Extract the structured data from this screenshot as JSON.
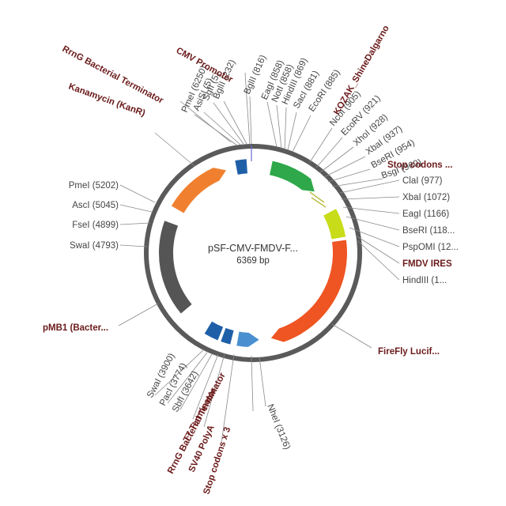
{
  "plasmid": {
    "name": "pSF-CMV-FMDV-F...",
    "length": "6369 bp",
    "backbone_color": "#555555"
  },
  "sites": [
    {
      "label": "PmeI (6250)"
    },
    {
      "label": "AsiSI (5)"
    },
    {
      "label": "SgfI (5)"
    },
    {
      "label": "BglII (232)"
    },
    {
      "label": "BglII (816)"
    },
    {
      "label": "EagI (858)"
    },
    {
      "label": "NotI (858)"
    },
    {
      "label": "HindIII (869)"
    },
    {
      "label": "SacI (881)"
    },
    {
      "label": "EcoRI (885)"
    },
    {
      "label": "NcoI (905)"
    },
    {
      "label": "EcoRV (921)"
    },
    {
      "label": "XhoI (928)"
    },
    {
      "label": "XbaI (937)"
    },
    {
      "label": "BseRI (954)"
    },
    {
      "label": "BsgI (960)"
    },
    {
      "label": "ClaI (977)"
    },
    {
      "label": "XbaI (1072)"
    },
    {
      "label": "EagI (1166)"
    },
    {
      "label": "BseRI (118..."
    },
    {
      "label": "PspOMI (12..."
    },
    {
      "label": "HindIII (1..."
    },
    {
      "label": "NheI (3126)"
    },
    {
      "label": "PacI (3774)"
    },
    {
      "label": "SbfI (3642)"
    },
    {
      "label": "SwaI (3900)"
    },
    {
      "label": "SwaI (4793)"
    },
    {
      "label": "FseI (4899)"
    },
    {
      "label": "AscI (5045)"
    },
    {
      "label": "PmeI (5202)"
    }
  ],
  "features": [
    {
      "label": "RrnG Bacterial Terminator",
      "color": "#1f5fa8"
    },
    {
      "label": "CMV Promoter",
      "color": "#2ea84a"
    },
    {
      "label": "Kanamycin (KanR)",
      "color": "#f08030"
    },
    {
      "label": "KOZAK_ShineDalgarno",
      "color": "#7a7a20"
    },
    {
      "label": "Stop codons ...",
      "color": "#6b1a1a"
    },
    {
      "label": "FMDV IRES",
      "color": "#c8dc1a"
    },
    {
      "label": "FireFly Lucif...",
      "color": "#ee5522"
    },
    {
      "label": "pMB1 (Bacter...",
      "color": "#555555"
    },
    {
      "label": "RrnG Bacterial Terminator",
      "color": "#1f5fa8"
    },
    {
      "label": "T7 Terminator",
      "color": "#1f5fa8"
    },
    {
      "label": "SV40 PolyA",
      "color": "#4a8fd0"
    },
    {
      "label": "Stop codons x 3",
      "color": "#6b1a1a"
    }
  ]
}
